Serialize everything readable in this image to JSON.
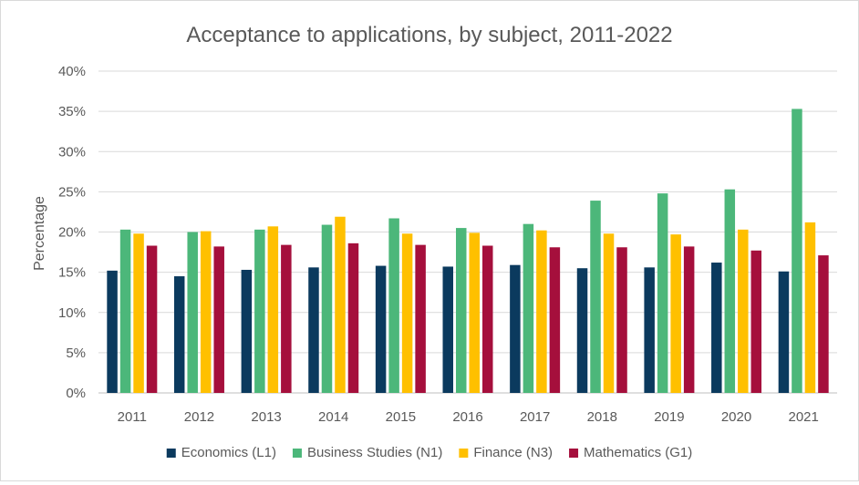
{
  "chart_data": {
    "type": "bar",
    "title": "Acceptance to applications, by subject, 2011-2022",
    "xlabel": "",
    "ylabel": "Percentage",
    "ylim": [
      0,
      40
    ],
    "yticks": [
      "0%",
      "5%",
      "10%",
      "15%",
      "20%",
      "25%",
      "30%",
      "35%",
      "40%"
    ],
    "grid": true,
    "legend_position": "bottom",
    "categories": [
      "2011",
      "2012",
      "2013",
      "2014",
      "2015",
      "2016",
      "2017",
      "2018",
      "2019",
      "2020",
      "2021"
    ],
    "series": [
      {
        "name": "Economics (L1)",
        "color": "#0b3a5e",
        "values": [
          15.2,
          14.5,
          15.3,
          15.6,
          15.8,
          15.7,
          15.9,
          15.5,
          15.6,
          16.2,
          15.1
        ]
      },
      {
        "name": "Business Studies (N1)",
        "color": "#4cb77a",
        "values": [
          20.3,
          20.0,
          20.3,
          20.9,
          21.7,
          20.5,
          21.0,
          23.9,
          24.8,
          25.3,
          35.3
        ]
      },
      {
        "name": "Finance (N3)",
        "color": "#ffc000",
        "values": [
          19.8,
          20.1,
          20.7,
          21.9,
          19.8,
          19.9,
          20.2,
          19.8,
          19.7,
          20.3,
          21.2
        ]
      },
      {
        "name": "Mathematics (G1)",
        "color": "#a50f3c",
        "values": [
          18.3,
          18.2,
          18.4,
          18.6,
          18.4,
          18.3,
          18.1,
          18.1,
          18.2,
          17.7,
          17.1
        ]
      }
    ]
  }
}
